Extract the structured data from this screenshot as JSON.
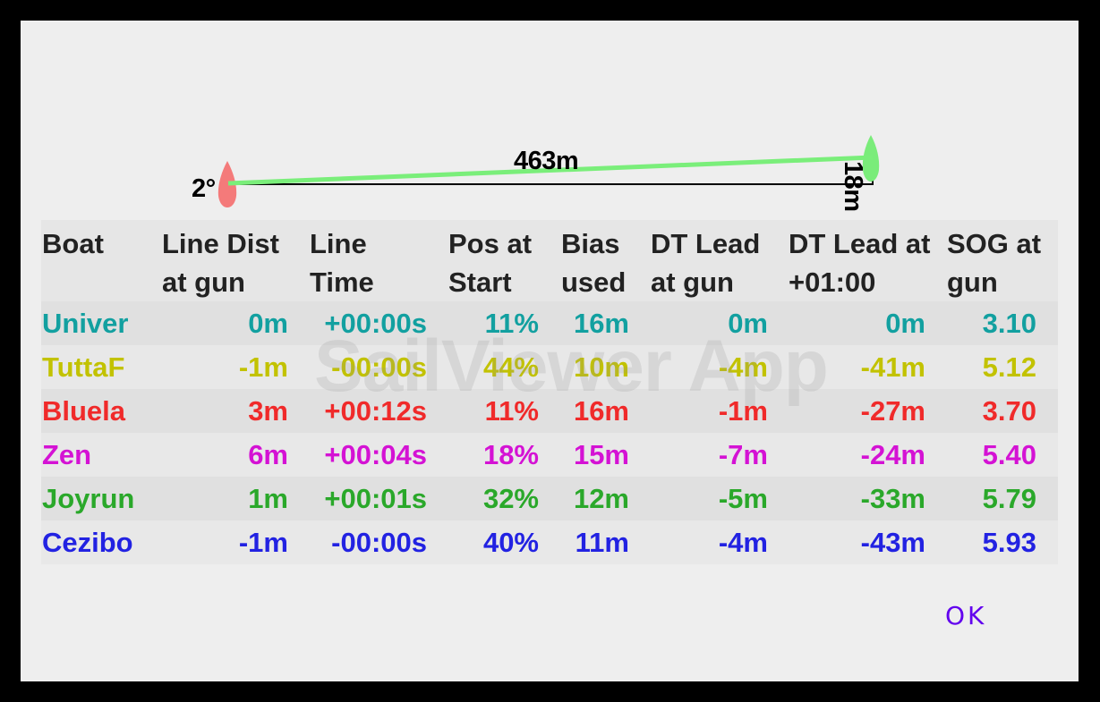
{
  "diagram": {
    "angle_label": "2°",
    "length_label": "463m",
    "offset_label": "18m",
    "pin_boat_color": "#f47a7a",
    "committee_boat_color": "#7aec7a",
    "line_color": "#7aee7a"
  },
  "table": {
    "headers": [
      "Boat",
      "Line Dist at gun",
      "Line Time",
      "Pos at Start",
      "Bias used",
      "DT Lead at gun",
      "DT Lead at +01:00",
      "SOG at gun"
    ],
    "rows": [
      {
        "boat": "Univer",
        "line_dist": "0m",
        "line_time": "+00:00s",
        "pos": "11%",
        "bias": "16m",
        "dt_gun": "0m",
        "dt_1min": "0m",
        "sog": "3.10",
        "color": "#12a0a0"
      },
      {
        "boat": "TuttaF",
        "line_dist": "-1m",
        "line_time": "-00:00s",
        "pos": "44%",
        "bias": "10m",
        "dt_gun": "-4m",
        "dt_1min": "-41m",
        "sog": "5.12",
        "color": "#c2c200"
      },
      {
        "boat": "Bluela",
        "line_dist": "3m",
        "line_time": "+00:12s",
        "pos": "11%",
        "bias": "16m",
        "dt_gun": "-1m",
        "dt_1min": "-27m",
        "sog": "3.70",
        "color": "#f02a2a"
      },
      {
        "boat": "Zen",
        "line_dist": "6m",
        "line_time": "+00:04s",
        "pos": "18%",
        "bias": "15m",
        "dt_gun": "-7m",
        "dt_1min": "-24m",
        "sog": "5.40",
        "color": "#d412d4"
      },
      {
        "boat": "Joyrun",
        "line_dist": "1m",
        "line_time": "+00:01s",
        "pos": "32%",
        "bias": "12m",
        "dt_gun": "-5m",
        "dt_1min": "-33m",
        "sog": "5.79",
        "color": "#2aa82a"
      },
      {
        "boat": "Cezibo",
        "line_dist": "-1m",
        "line_time": "-00:00s",
        "pos": "40%",
        "bias": "11m",
        "dt_gun": "-4m",
        "dt_1min": "-43m",
        "sog": "5.93",
        "color": "#2222e2"
      }
    ]
  },
  "watermark": "SailViewer App",
  "ok_button": "OK"
}
